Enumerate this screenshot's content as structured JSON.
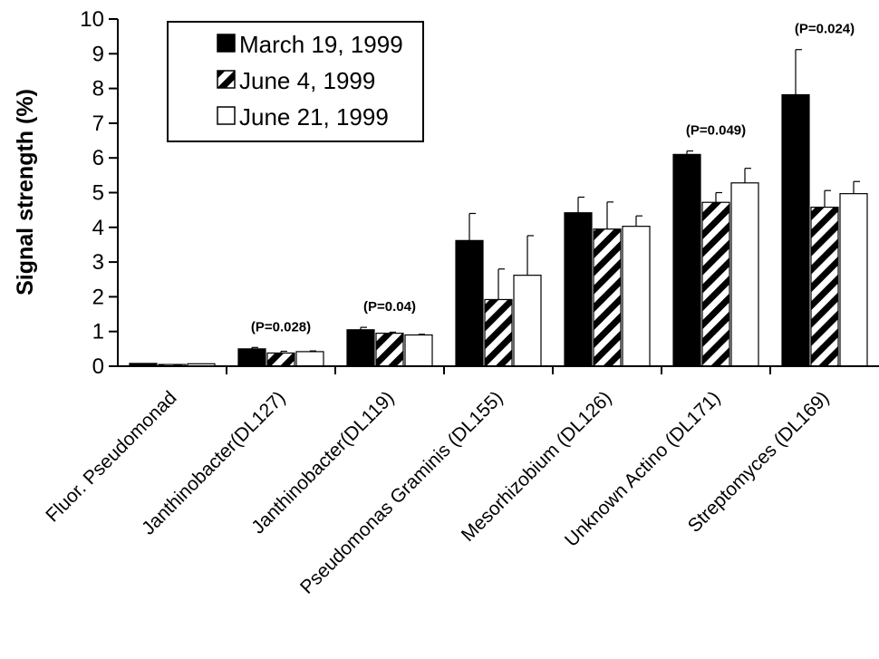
{
  "chart_data": {
    "type": "bar",
    "title": "",
    "xlabel": "",
    "ylabel": "Signal strength (%)",
    "ylim": [
      0,
      10
    ],
    "yticks": [
      0,
      1,
      2,
      3,
      4,
      5,
      6,
      7,
      8,
      9,
      10
    ],
    "grid": false,
    "legend_position": "top-left",
    "categories": [
      "Fluor. Pseudomonad",
      "Janthinobacter(DL127)",
      "Janthinobacter(DL119)",
      "Pseudomonas Graminis (DL155)",
      "Mesorhizobium (DL126)",
      "Unknown Actino (DL171)",
      "Streptomyces (DL169)"
    ],
    "series": [
      {
        "name": "March 19, 1999",
        "fill": "solid-black",
        "values": [
          0.08,
          0.5,
          1.05,
          3.62,
          4.42,
          6.1,
          7.82
        ],
        "error": [
          0.0,
          0.04,
          0.07,
          0.78,
          0.45,
          0.1,
          1.3
        ]
      },
      {
        "name": "June 4, 1999",
        "fill": "diagonal-stripes",
        "values": [
          0.05,
          0.38,
          0.95,
          1.92,
          3.95,
          4.72,
          4.58
        ],
        "error": [
          0.0,
          0.05,
          0.03,
          0.88,
          0.78,
          0.28,
          0.48
        ]
      },
      {
        "name": "June 21, 1999",
        "fill": "white",
        "values": [
          0.07,
          0.42,
          0.9,
          2.62,
          4.03,
          5.28,
          4.97
        ],
        "error": [
          0.0,
          0.02,
          0.02,
          1.14,
          0.3,
          0.42,
          0.35
        ]
      }
    ],
    "annotations": [
      {
        "category_index": 1,
        "text": "(P=0.028)"
      },
      {
        "category_index": 2,
        "text": "(P=0.04)"
      },
      {
        "category_index": 5,
        "text": "(P=0.049)"
      },
      {
        "category_index": 6,
        "text": "(P=0.024)"
      }
    ]
  }
}
